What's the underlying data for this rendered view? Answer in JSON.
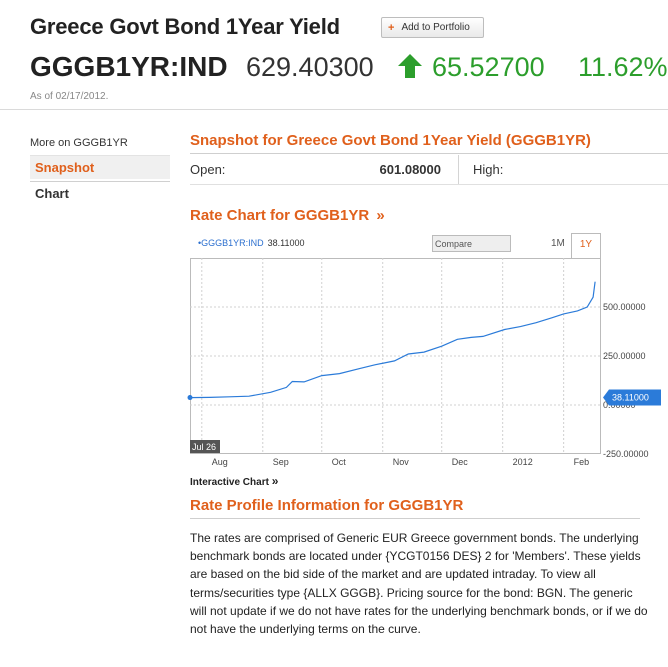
{
  "header": {
    "title": "Greece Govt Bond 1Year Yield",
    "add_button": "Add to Portfolio",
    "ticker": "GGGB1YR:IND",
    "price": "629.40300",
    "change": "65.52700",
    "change_pct": "11.62%",
    "as_of": "As of 02/17/2012."
  },
  "sidebar": {
    "heading": "More on GGGB1YR",
    "items": [
      {
        "label": "Snapshot",
        "active": true
      },
      {
        "label": "Chart",
        "active": false
      }
    ]
  },
  "snapshot": {
    "title": "Snapshot for Greece Govt Bond 1Year Yield (GGGB1YR)",
    "open_label": "Open:",
    "open_value": "601.08000",
    "high_label": "High:"
  },
  "rate_chart": {
    "title": "Rate Chart for GGGB1YR",
    "title_arrow": "»",
    "legend_name": "GGGB1YR:IND",
    "legend_value": "38.11000",
    "compare_placeholder": "Compare",
    "range_1m": "1M",
    "range_1y": "1Y",
    "interactive_link": "Interactive Chart",
    "interactive_arrow": "»"
  },
  "chart_data": {
    "type": "line",
    "series": [
      {
        "name": "GGGB1YR:IND",
        "x": [
          "2011-07-26",
          "2011-08-05",
          "2011-08-15",
          "2011-08-25",
          "2011-09-05",
          "2011-09-13",
          "2011-09-16",
          "2011-09-22",
          "2011-10-01",
          "2011-10-10",
          "2011-10-20",
          "2011-10-28",
          "2011-11-07",
          "2011-11-14",
          "2011-11-22",
          "2011-12-01",
          "2011-12-09",
          "2011-12-16",
          "2011-12-22",
          "2012-01-02",
          "2012-01-10",
          "2012-01-18",
          "2012-01-26",
          "2012-02-01",
          "2012-02-08",
          "2012-02-13",
          "2012-02-16",
          "2012-02-17"
        ],
        "y": [
          38,
          39,
          42,
          45,
          65,
          90,
          120,
          118,
          150,
          160,
          185,
          205,
          225,
          260,
          270,
          300,
          335,
          345,
          350,
          385,
          400,
          420,
          445,
          465,
          480,
          500,
          550,
          629
        ]
      }
    ],
    "x_ticks": [
      "Aug",
      "Sep",
      "Oct",
      "Nov",
      "Dec",
      "2012",
      "Feb"
    ],
    "y_ticks": [
      "500.00000",
      "250.00000",
      "0.00000",
      "-250.00000"
    ],
    "y_tick_values": [
      500,
      250,
      0,
      -250
    ],
    "last_value_label": "38.11000",
    "start_label": "Jul 26",
    "ylim": [
      -250,
      750
    ],
    "grid": true,
    "line_color": "#2b7bd9"
  },
  "profile": {
    "title": "Rate Profile Information for GGGB1YR",
    "text": "The rates are comprised of Generic EUR Greece government bonds. The underlying benchmark bonds are located under {YCGT0156 DES} 2 for 'Members'. These yields are based on the bid side of the market and are updated intraday. To view all terms/securities type {ALLX GGGB}. Pricing source for the bond: BGN. The generic will not update if we do not have rates for the underlying benchmark bonds, or if we do not have the underlying terms on the curve."
  },
  "colors": {
    "accent": "#e0601c",
    "positive": "#2c9e2c",
    "link_blue": "#2b6fcf"
  }
}
